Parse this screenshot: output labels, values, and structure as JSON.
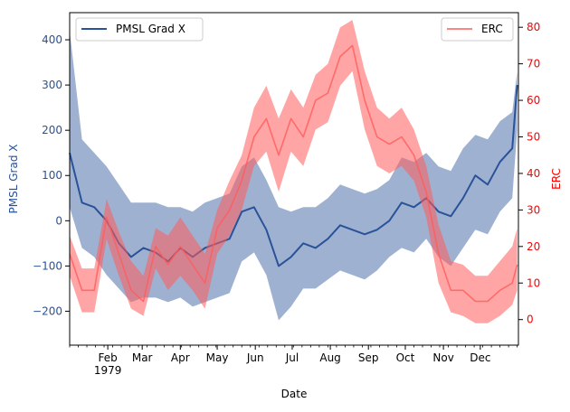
{
  "chart_data": {
    "type": "line",
    "xlabel": "Date",
    "colors": {
      "primary": "#2a5298",
      "secondary": "#ff5b5b",
      "secondary_axis": "#ff0000",
      "axis": "#000000"
    },
    "x_ticks": [
      {
        "x": 31,
        "label": "Feb",
        "sublabel": "1979"
      },
      {
        "x": 59,
        "label": "Mar"
      },
      {
        "x": 90,
        "label": "Apr"
      },
      {
        "x": 120,
        "label": "May"
      },
      {
        "x": 151,
        "label": "Jun"
      },
      {
        "x": 181,
        "label": "Jul"
      },
      {
        "x": 212,
        "label": "Aug"
      },
      {
        "x": 243,
        "label": "Sep"
      },
      {
        "x": 273,
        "label": "Oct"
      },
      {
        "x": 304,
        "label": "Nov"
      },
      {
        "x": 334,
        "label": "Dec"
      }
    ],
    "xlim": [
      0,
      365
    ],
    "y_left": {
      "label": "PMSL Grad X",
      "lim": [
        -275,
        460
      ],
      "ticks": [
        -200,
        -100,
        0,
        100,
        200,
        300,
        400
      ],
      "tick_labels": [
        "−200",
        "−100",
        "0",
        "100",
        "200",
        "300",
        "400"
      ]
    },
    "y_right": {
      "label": "ERC",
      "lim": [
        -7,
        84
      ],
      "ticks": [
        0,
        10,
        20,
        30,
        40,
        50,
        60,
        70,
        80
      ],
      "tick_labels": [
        "0",
        "10",
        "20",
        "30",
        "40",
        "50",
        "60",
        "70",
        "80"
      ]
    },
    "legend_left": {
      "label": "PMSL Grad X",
      "position": "upper left"
    },
    "legend_right": {
      "label": "ERC",
      "position": "upper right"
    },
    "series": [
      {
        "name": "PMSL Grad X",
        "axis": "left",
        "x": [
          0,
          10,
          20,
          30,
          40,
          50,
          60,
          70,
          80,
          90,
          100,
          110,
          120,
          130,
          140,
          150,
          160,
          170,
          180,
          190,
          200,
          210,
          220,
          230,
          240,
          250,
          260,
          270,
          280,
          290,
          300,
          310,
          320,
          330,
          340,
          350,
          360,
          364
        ],
        "values": [
          150,
          40,
          30,
          0,
          -50,
          -80,
          -60,
          -70,
          -90,
          -60,
          -80,
          -60,
          -50,
          -40,
          20,
          30,
          -20,
          -100,
          -80,
          -50,
          -60,
          -40,
          -10,
          -20,
          -30,
          -20,
          0,
          40,
          30,
          50,
          20,
          10,
          50,
          100,
          80,
          130,
          160,
          300
        ],
        "band_upper": [
          420,
          180,
          150,
          120,
          80,
          40,
          40,
          40,
          30,
          30,
          20,
          40,
          50,
          60,
          120,
          140,
          90,
          30,
          20,
          30,
          30,
          50,
          80,
          70,
          60,
          70,
          90,
          140,
          130,
          150,
          120,
          110,
          160,
          190,
          180,
          220,
          240,
          330
        ],
        "band_lower": [
          30,
          -60,
          -80,
          -120,
          -150,
          -180,
          -170,
          -170,
          -180,
          -170,
          -190,
          -180,
          -170,
          -160,
          -90,
          -70,
          -120,
          -220,
          -190,
          -150,
          -150,
          -130,
          -110,
          -120,
          -130,
          -110,
          -80,
          -60,
          -70,
          -40,
          -80,
          -100,
          -60,
          -20,
          -30,
          20,
          50,
          200
        ]
      },
      {
        "name": "ERC",
        "axis": "right",
        "x": [
          0,
          10,
          20,
          30,
          40,
          50,
          60,
          70,
          80,
          90,
          100,
          110,
          120,
          130,
          140,
          150,
          160,
          170,
          180,
          190,
          200,
          210,
          220,
          230,
          240,
          250,
          260,
          270,
          280,
          290,
          300,
          310,
          320,
          330,
          340,
          350,
          360,
          364
        ],
        "values": [
          18,
          8,
          8,
          28,
          18,
          8,
          5,
          20,
          15,
          20,
          15,
          10,
          25,
          30,
          38,
          50,
          55,
          45,
          55,
          50,
          60,
          62,
          72,
          75,
          60,
          50,
          48,
          50,
          45,
          35,
          18,
          8,
          8,
          5,
          5,
          8,
          10,
          15
        ],
        "band_upper": [
          23,
          14,
          14,
          33,
          24,
          16,
          12,
          25,
          23,
          28,
          23,
          18,
          30,
          38,
          45,
          58,
          64,
          55,
          63,
          58,
          67,
          70,
          80,
          82,
          68,
          58,
          55,
          58,
          52,
          42,
          26,
          16,
          15,
          12,
          12,
          16,
          20,
          25
        ],
        "band_lower": [
          12,
          2,
          2,
          22,
          12,
          3,
          1,
          14,
          8,
          12,
          8,
          3,
          18,
          23,
          30,
          42,
          46,
          35,
          46,
          42,
          52,
          54,
          64,
          68,
          52,
          42,
          40,
          42,
          38,
          28,
          10,
          2,
          1,
          -1,
          -1,
          1,
          4,
          8
        ]
      }
    ]
  }
}
